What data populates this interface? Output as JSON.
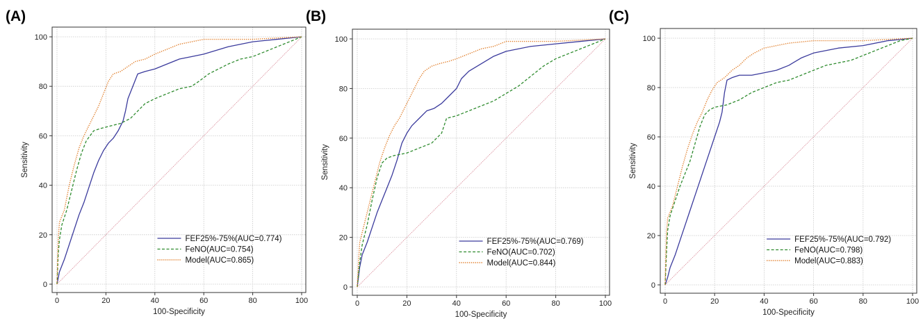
{
  "chart_data": [
    {
      "type": "line",
      "panel_label": "(A)",
      "xlabel": "100-Specificity",
      "ylabel": "Sensitivity",
      "xlim": [
        0,
        100
      ],
      "ylim": [
        0,
        100
      ],
      "xticks": [
        "0",
        "20",
        "40",
        "60",
        "80",
        "100"
      ],
      "yticks": [
        "0",
        "20",
        "40",
        "60",
        "80",
        "100"
      ],
      "grid": true,
      "legend": "bottom-right",
      "series": [
        {
          "name": "FEF25%-75%(AUC=0.774)",
          "color": "#3a3a9c",
          "style": "solid",
          "points": [
            [
              0,
              0
            ],
            [
              1,
              5
            ],
            [
              3,
              10
            ],
            [
              5,
              16
            ],
            [
              7,
              22
            ],
            [
              9,
              28
            ],
            [
              11,
              33
            ],
            [
              13,
              39
            ],
            [
              15,
              45
            ],
            [
              17,
              50
            ],
            [
              19,
              54
            ],
            [
              21,
              57
            ],
            [
              23,
              59
            ],
            [
              25,
              62
            ],
            [
              27,
              66
            ],
            [
              28,
              70
            ],
            [
              29,
              75
            ],
            [
              31,
              80
            ],
            [
              33,
              85
            ],
            [
              36,
              86
            ],
            [
              40,
              87
            ],
            [
              45,
              89
            ],
            [
              50,
              91
            ],
            [
              55,
              92
            ],
            [
              60,
              93
            ],
            [
              70,
              96
            ],
            [
              80,
              98
            ],
            [
              90,
              99
            ],
            [
              100,
              100
            ]
          ]
        },
        {
          "name": "FeNO(AUC=0.754)",
          "color": "#2e8b2e",
          "style": "dashed",
          "points": [
            [
              0,
              0
            ],
            [
              0.5,
              12
            ],
            [
              1,
              18
            ],
            [
              2,
              24
            ],
            [
              4,
              30
            ],
            [
              6,
              38
            ],
            [
              8,
              46
            ],
            [
              10,
              53
            ],
            [
              12,
              58
            ],
            [
              15,
              62
            ],
            [
              18,
              63
            ],
            [
              22,
              64
            ],
            [
              26,
              65
            ],
            [
              30,
              67
            ],
            [
              33,
              70
            ],
            [
              36,
              73
            ],
            [
              40,
              75
            ],
            [
              45,
              77
            ],
            [
              50,
              79
            ],
            [
              55,
              80
            ],
            [
              58,
              82
            ],
            [
              62,
              85
            ],
            [
              66,
              87
            ],
            [
              70,
              89
            ],
            [
              75,
              91
            ],
            [
              80,
              92
            ],
            [
              85,
              94
            ],
            [
              90,
              96
            ],
            [
              95,
              98
            ],
            [
              100,
              100
            ]
          ]
        },
        {
          "name": "Model(AUC=0.865)",
          "color": "#e07b25",
          "style": "dotted",
          "points": [
            [
              0,
              0
            ],
            [
              0.5,
              18
            ],
            [
              1,
              25
            ],
            [
              3,
              30
            ],
            [
              5,
              40
            ],
            [
              7,
              48
            ],
            [
              9,
              55
            ],
            [
              11,
              60
            ],
            [
              13,
              64
            ],
            [
              15,
              68
            ],
            [
              17,
              72
            ],
            [
              19,
              77
            ],
            [
              21,
              82
            ],
            [
              23,
              85
            ],
            [
              26,
              86
            ],
            [
              29,
              88
            ],
            [
              32,
              90
            ],
            [
              36,
              91
            ],
            [
              40,
              93
            ],
            [
              45,
              95
            ],
            [
              50,
              97
            ],
            [
              55,
              98
            ],
            [
              60,
              99
            ],
            [
              70,
              99
            ],
            [
              80,
              99
            ],
            [
              90,
              99.5
            ],
            [
              100,
              100
            ]
          ]
        },
        {
          "name": "",
          "color": "#d47a8a",
          "style": "thin",
          "points": [
            [
              0,
              0
            ],
            [
              100,
              100
            ]
          ]
        }
      ]
    },
    {
      "type": "line",
      "panel_label": "(B)",
      "xlabel": "100-Specificity",
      "ylabel": "Sensitivity",
      "xlim": [
        0,
        100
      ],
      "ylim": [
        0,
        100
      ],
      "xticks": [
        "0",
        "20",
        "40",
        "60",
        "80",
        "100"
      ],
      "yticks": [
        "0",
        "20",
        "40",
        "60",
        "80",
        "100"
      ],
      "grid": true,
      "legend": "bottom-right",
      "series": [
        {
          "name": "FEF25%-75%(AUC=0.769)",
          "color": "#3a3a9c",
          "style": "solid",
          "points": [
            [
              0,
              0
            ],
            [
              1,
              8
            ],
            [
              2,
              13
            ],
            [
              4,
              18
            ],
            [
              6,
              24
            ],
            [
              8,
              30
            ],
            [
              10,
              35
            ],
            [
              12,
              40
            ],
            [
              14,
              45
            ],
            [
              16,
              51
            ],
            [
              18,
              58
            ],
            [
              20,
              62
            ],
            [
              22,
              65
            ],
            [
              25,
              68
            ],
            [
              28,
              71
            ],
            [
              31,
              72
            ],
            [
              34,
              74
            ],
            [
              37,
              77
            ],
            [
              40,
              80
            ],
            [
              42,
              84
            ],
            [
              45,
              87
            ],
            [
              50,
              90
            ],
            [
              55,
              93
            ],
            [
              60,
              95
            ],
            [
              70,
              97
            ],
            [
              80,
              98
            ],
            [
              90,
              99
            ],
            [
              100,
              100
            ]
          ]
        },
        {
          "name": "FeNO(AUC=0.702)",
          "color": "#2e8b2e",
          "style": "dashed",
          "points": [
            [
              0,
              0
            ],
            [
              0.5,
              5
            ],
            [
              1,
              10
            ],
            [
              2,
              17
            ],
            [
              4,
              25
            ],
            [
              6,
              35
            ],
            [
              8,
              44
            ],
            [
              10,
              50
            ],
            [
              12,
              52
            ],
            [
              15,
              53
            ],
            [
              20,
              54
            ],
            [
              25,
              56
            ],
            [
              30,
              58
            ],
            [
              34,
              62
            ],
            [
              36,
              68
            ],
            [
              40,
              69
            ],
            [
              45,
              71
            ],
            [
              50,
              73
            ],
            [
              55,
              75
            ],
            [
              60,
              78
            ],
            [
              65,
              81
            ],
            [
              70,
              85
            ],
            [
              75,
              89
            ],
            [
              80,
              92
            ],
            [
              85,
              94
            ],
            [
              90,
              96
            ],
            [
              95,
              98
            ],
            [
              100,
              100
            ]
          ]
        },
        {
          "name": "Model(AUC=0.844)",
          "color": "#e07b25",
          "style": "dotted",
          "points": [
            [
              0,
              0
            ],
            [
              0.5,
              10
            ],
            [
              1,
              18
            ],
            [
              3,
              26
            ],
            [
              5,
              34
            ],
            [
              7,
              42
            ],
            [
              9,
              50
            ],
            [
              11,
              56
            ],
            [
              13,
              61
            ],
            [
              15,
              65
            ],
            [
              17,
              68
            ],
            [
              19,
              72
            ],
            [
              21,
              76
            ],
            [
              23,
              80
            ],
            [
              25,
              84
            ],
            [
              27,
              87
            ],
            [
              30,
              89
            ],
            [
              33,
              90
            ],
            [
              37,
              91
            ],
            [
              40,
              92
            ],
            [
              45,
              94
            ],
            [
              50,
              96
            ],
            [
              55,
              97
            ],
            [
              60,
              99
            ],
            [
              70,
              99
            ],
            [
              80,
              99
            ],
            [
              90,
              99.5
            ],
            [
              100,
              100
            ]
          ]
        },
        {
          "name": "",
          "color": "#d47a8a",
          "style": "thin",
          "points": [
            [
              0,
              0
            ],
            [
              100,
              100
            ]
          ]
        }
      ]
    },
    {
      "type": "line",
      "panel_label": "(C)",
      "xlabel": "100-Specificity",
      "ylabel": "Sensitivity",
      "xlim": [
        0,
        100
      ],
      "ylim": [
        0,
        100
      ],
      "xticks": [
        "0",
        "20",
        "40",
        "60",
        "80",
        "100"
      ],
      "yticks": [
        "0",
        "20",
        "40",
        "60",
        "80",
        "100"
      ],
      "grid": true,
      "legend": "bottom-right",
      "series": [
        {
          "name": "FEF25%-75%(AUC=0.792)",
          "color": "#3a3a9c",
          "style": "solid",
          "points": [
            [
              0,
              0
            ],
            [
              1,
              3
            ],
            [
              2,
              7
            ],
            [
              4,
              12
            ],
            [
              6,
              18
            ],
            [
              8,
              24
            ],
            [
              10,
              30
            ],
            [
              12,
              36
            ],
            [
              14,
              42
            ],
            [
              16,
              48
            ],
            [
              18,
              54
            ],
            [
              20,
              60
            ],
            [
              22,
              66
            ],
            [
              23,
              70
            ],
            [
              24,
              78
            ],
            [
              25,
              83
            ],
            [
              27,
              84
            ],
            [
              30,
              85
            ],
            [
              35,
              85
            ],
            [
              40,
              86
            ],
            [
              45,
              87
            ],
            [
              50,
              89
            ],
            [
              55,
              92
            ],
            [
              60,
              94
            ],
            [
              70,
              96
            ],
            [
              80,
              97
            ],
            [
              90,
              99
            ],
            [
              100,
              100
            ]
          ]
        },
        {
          "name": "FeNO(AUC=0.798)",
          "color": "#2e8b2e",
          "style": "dashed",
          "points": [
            [
              0,
              0
            ],
            [
              0.5,
              12
            ],
            [
              1,
              22
            ],
            [
              2,
              28
            ],
            [
              4,
              34
            ],
            [
              6,
              40
            ],
            [
              8,
              45
            ],
            [
              10,
              50
            ],
            [
              12,
              57
            ],
            [
              14,
              64
            ],
            [
              16,
              69
            ],
            [
              18,
              71
            ],
            [
              20,
              72
            ],
            [
              25,
              73
            ],
            [
              30,
              75
            ],
            [
              35,
              78
            ],
            [
              40,
              80
            ],
            [
              45,
              82
            ],
            [
              50,
              83
            ],
            [
              55,
              85
            ],
            [
              60,
              87
            ],
            [
              65,
              89
            ],
            [
              70,
              90
            ],
            [
              75,
              91
            ],
            [
              80,
              93
            ],
            [
              85,
              95
            ],
            [
              90,
              97
            ],
            [
              95,
              99
            ],
            [
              100,
              100
            ]
          ]
        },
        {
          "name": "Model(AUC=0.883)",
          "color": "#e07b25",
          "style": "dotted",
          "points": [
            [
              0,
              0
            ],
            [
              0.5,
              20
            ],
            [
              1,
              27
            ],
            [
              3,
              32
            ],
            [
              5,
              40
            ],
            [
              7,
              48
            ],
            [
              9,
              55
            ],
            [
              11,
              61
            ],
            [
              13,
              66
            ],
            [
              15,
              70
            ],
            [
              17,
              75
            ],
            [
              19,
              79
            ],
            [
              21,
              82
            ],
            [
              24,
              84
            ],
            [
              27,
              87
            ],
            [
              30,
              89
            ],
            [
              33,
              92
            ],
            [
              36,
              94
            ],
            [
              40,
              96
            ],
            [
              45,
              97
            ],
            [
              50,
              98
            ],
            [
              60,
              99
            ],
            [
              70,
              99
            ],
            [
              80,
              99
            ],
            [
              90,
              99.5
            ],
            [
              100,
              100
            ]
          ]
        },
        {
          "name": "",
          "color": "#d47a8a",
          "style": "thin",
          "points": [
            [
              0,
              0
            ],
            [
              100,
              100
            ]
          ]
        }
      ]
    }
  ]
}
